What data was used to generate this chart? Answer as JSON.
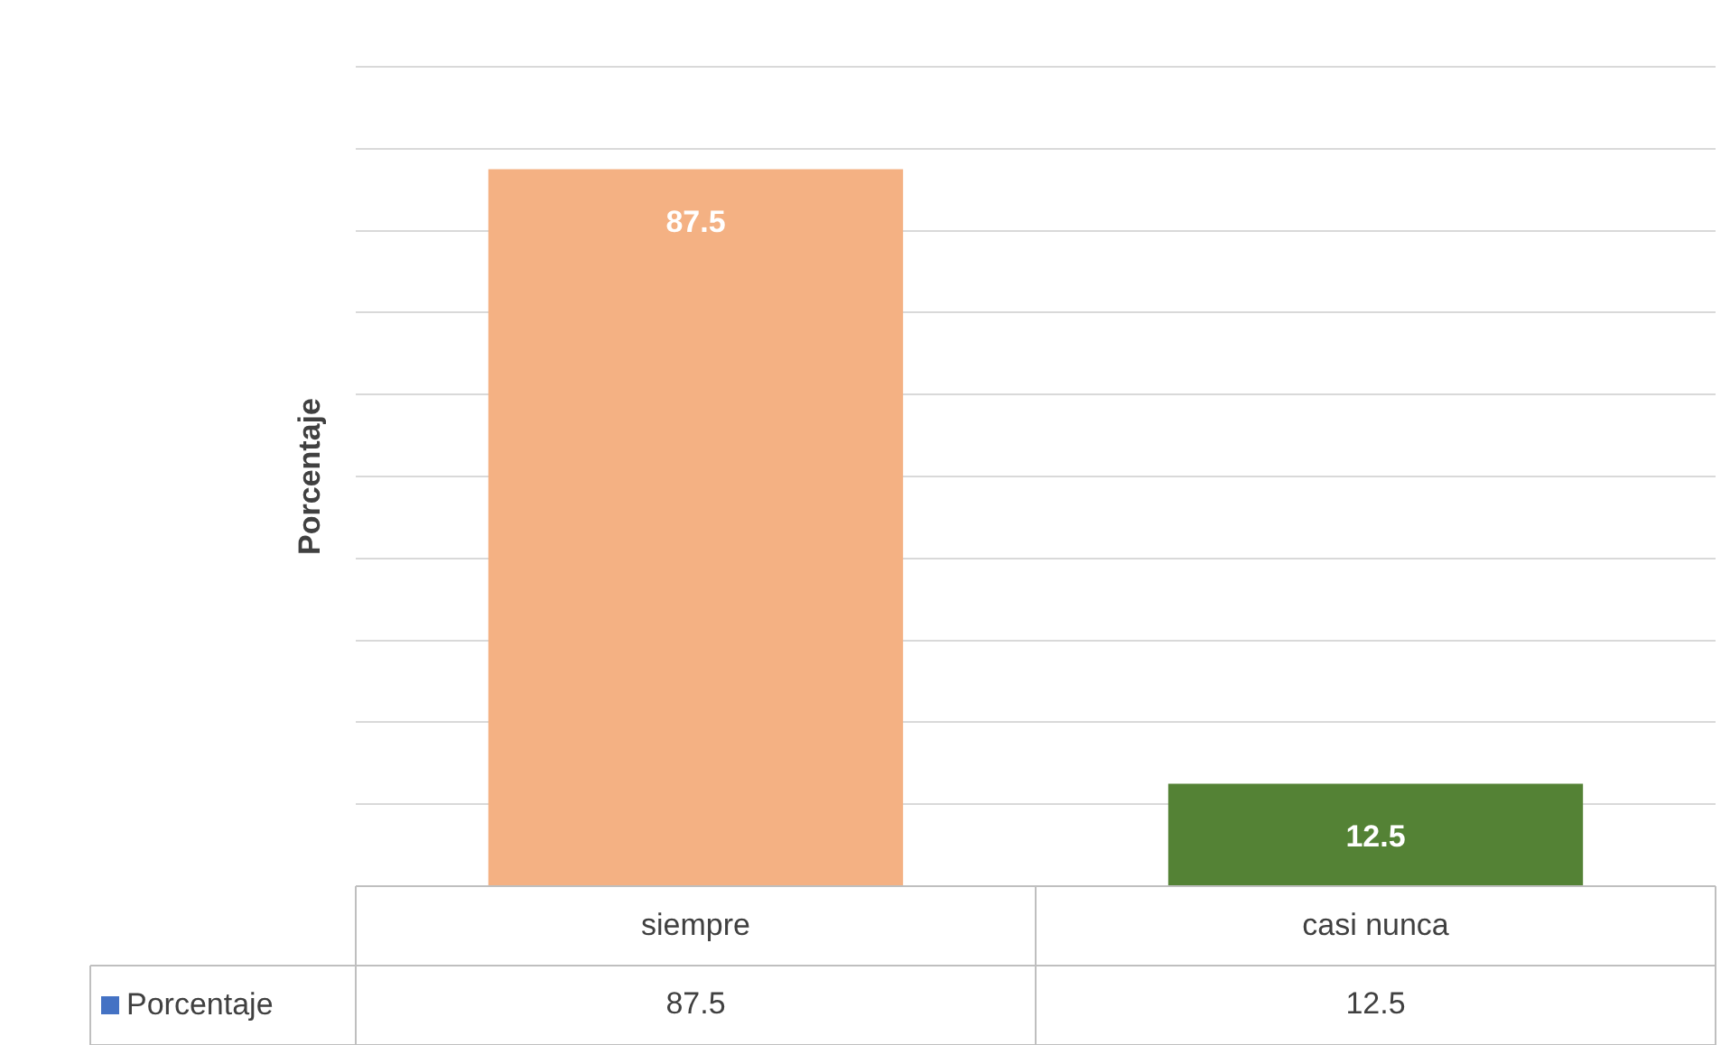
{
  "chart_data": {
    "type": "bar",
    "ylabel": "Porcentaje",
    "categories": [
      "siempre",
      "casi nunca"
    ],
    "series": [
      {
        "name": "Porcentaje",
        "color": "#4472c4",
        "colors": [
          "#f4b183",
          "#548235"
        ],
        "values": [
          87.5,
          12.5
        ],
        "value_labels": [
          "87.5",
          "12.5"
        ]
      }
    ],
    "ylim": [
      0,
      100
    ],
    "yticks": [
      {
        "value": 0,
        "label": null
      },
      {
        "value": 10,
        "label": null
      },
      {
        "value": 20,
        "label": null
      },
      {
        "value": 30,
        "label": null
      },
      {
        "value": 40,
        "label": null
      },
      {
        "value": 50,
        "label": null
      },
      {
        "value": 60,
        "label": null
      },
      {
        "value": 70,
        "label": null
      },
      {
        "value": 80,
        "label": null
      },
      {
        "value": 90,
        "label": null
      },
      {
        "value": 100,
        "label": null
      }
    ],
    "annotations": [
      "87.5",
      "12.5"
    ],
    "tick_labels": "x",
    "grid": "y",
    "legend": "bottom left"
  }
}
